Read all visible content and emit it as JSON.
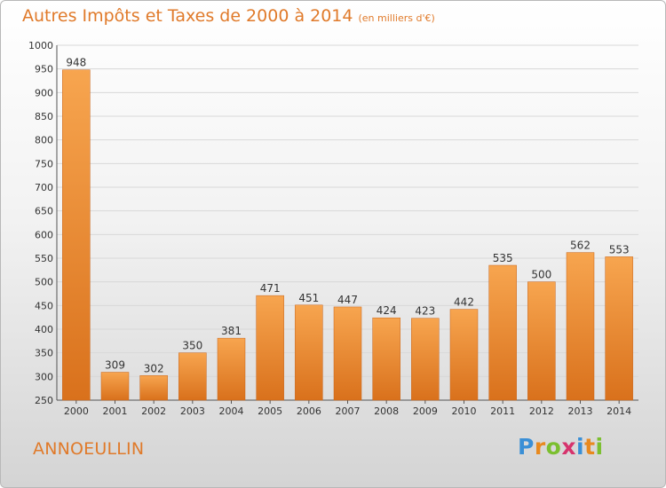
{
  "header": {
    "title": "Autres Impôts et Taxes de 2000 à 2014",
    "unit": "(en milliers d'€)"
  },
  "town": "ANNOEULLIN",
  "logo": {
    "text": "Proxiti",
    "letters": [
      {
        "ch": "P",
        "color": "#3a8fd6"
      },
      {
        "ch": "r",
        "color": "#e8891e"
      },
      {
        "ch": "o",
        "color": "#7bbf2f"
      },
      {
        "ch": "x",
        "color": "#d6336c"
      },
      {
        "ch": "i",
        "color": "#3a8fd6"
      },
      {
        "ch": "t",
        "color": "#e8891e"
      },
      {
        "ch": "i",
        "color": "#7bbf2f"
      }
    ]
  },
  "colors": {
    "bar_light": "#f7a54f",
    "bar_dark": "#d9711c",
    "accent": "#e07a2a",
    "grid": "#d8d8d8",
    "axis_text": "#333333"
  },
  "chart_data": {
    "type": "bar",
    "categories": [
      "2000",
      "2001",
      "2002",
      "2003",
      "2004",
      "2005",
      "2006",
      "2007",
      "2008",
      "2009",
      "2010",
      "2011",
      "2012",
      "2013",
      "2014"
    ],
    "values": [
      948,
      309,
      302,
      350,
      381,
      471,
      451,
      447,
      424,
      423,
      442,
      535,
      500,
      562,
      553
    ],
    "title": "Autres Impôts et Taxes de 2000 à 2014",
    "ylim": [
      250,
      1000
    ],
    "yticks": [
      250,
      300,
      350,
      400,
      450,
      500,
      550,
      600,
      650,
      700,
      750,
      800,
      850,
      900,
      950,
      1000
    ],
    "grid": true,
    "data_labels": true
  }
}
